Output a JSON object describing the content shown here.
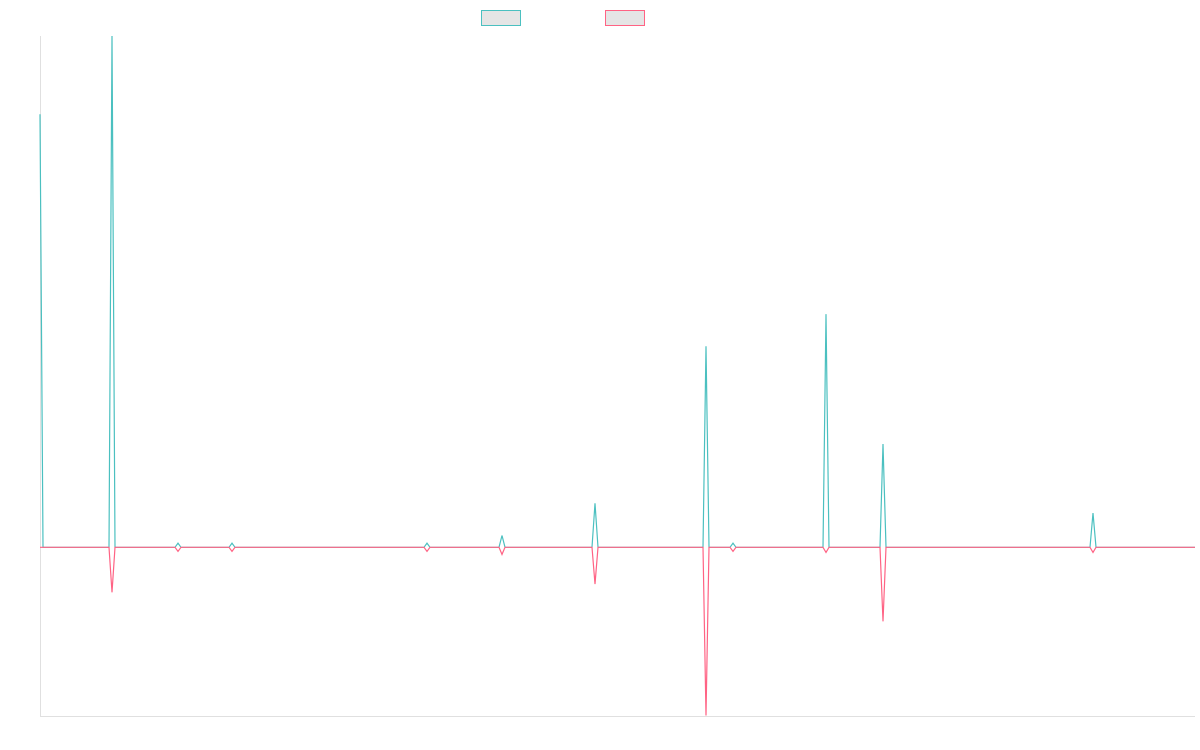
{
  "chart_data": {
    "type": "line",
    "title": "",
    "xlabel": "",
    "ylabel": "",
    "point_count": 386,
    "ylim": [
      -33,
      100
    ],
    "grid": false,
    "legend_position": "top-center",
    "series": [
      {
        "name": "",
        "color": "#4bc0c0",
        "points": [
          [
            0,
            84.7
          ],
          [
            24,
            100
          ],
          [
            46,
            0.8
          ],
          [
            64,
            0.8
          ],
          [
            129,
            0.8
          ],
          [
            154,
            2.3
          ],
          [
            185,
            8.6
          ],
          [
            222,
            39.3
          ],
          [
            231,
            0.8
          ],
          [
            262,
            45.6
          ],
          [
            281,
            20.2
          ],
          [
            351,
            6.7
          ]
        ]
      },
      {
        "name": "",
        "color": "#ff6384",
        "points": [
          [
            24,
            -8.8
          ],
          [
            46,
            -0.8
          ],
          [
            64,
            -0.8
          ],
          [
            129,
            -0.8
          ],
          [
            154,
            -1.4
          ],
          [
            185,
            -7.2
          ],
          [
            222,
            -32.9
          ],
          [
            231,
            -0.8
          ],
          [
            262,
            -1.0
          ],
          [
            281,
            -14.5
          ],
          [
            351,
            -1.0
          ]
        ]
      }
    ]
  }
}
